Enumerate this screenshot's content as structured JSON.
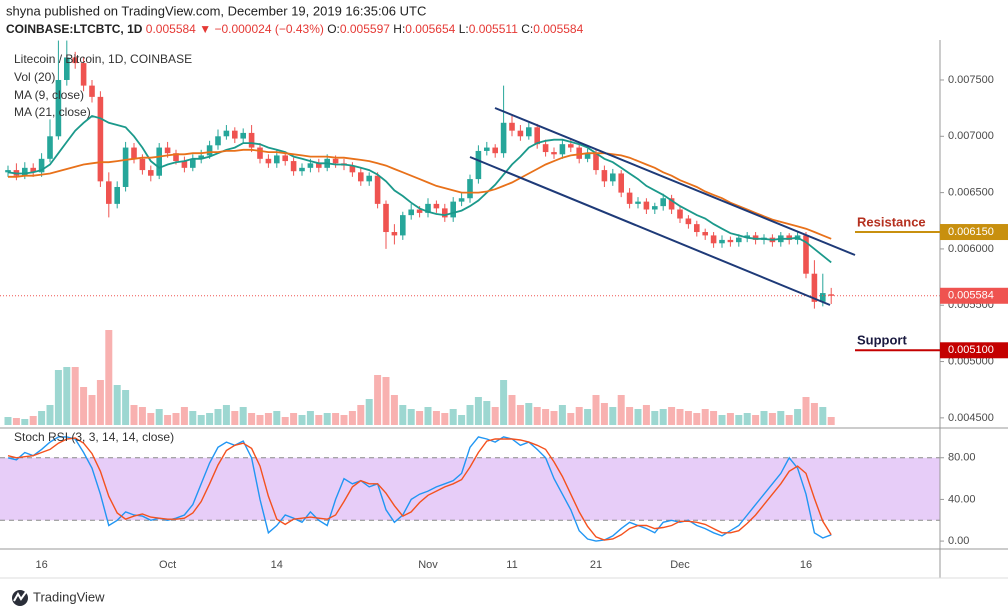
{
  "header": {
    "publisher": "shyna published on TradingView.com, December 19, 2019 16:35:06 UTC",
    "quote": {
      "symbol": "COINBASE:LTCBTC, 1D",
      "last": "0.005584",
      "arrow": "▼",
      "change": "−0.000024 (−0.43%)",
      "o_label": "O:",
      "o": "0.005597",
      "h_label": "H:",
      "h": "0.005654",
      "l_label": "L:",
      "l": "0.005511",
      "c_label": "C:",
      "c": "0.005584"
    }
  },
  "footer": {
    "brand": "TradingView"
  },
  "chart_data": [
    {
      "type": "candlestick",
      "title": "Litecoin / Bitcoin, 1D, COINBASE",
      "categories": [
        null,
        null,
        null,
        null,
        "16",
        null,
        null,
        null,
        null,
        null,
        null,
        null,
        null,
        null,
        null,
        null,
        null,
        null,
        null,
        "Oct",
        null,
        null,
        null,
        null,
        null,
        null,
        null,
        null,
        null,
        null,
        null,
        null,
        "14",
        null,
        null,
        null,
        null,
        null,
        null,
        null,
        null,
        null,
        null,
        null,
        null,
        null,
        null,
        null,
        null,
        null,
        "Nov",
        null,
        null,
        null,
        null,
        null,
        null,
        null,
        null,
        null,
        "11",
        null,
        null,
        null,
        null,
        null,
        null,
        null,
        null,
        null,
        "21",
        null,
        null,
        null,
        null,
        null,
        null,
        null,
        null,
        null,
        "Dec",
        null,
        null,
        null,
        null,
        null,
        null,
        null,
        null,
        null,
        null,
        null,
        null,
        null,
        null,
        "16",
        null,
        null,
        null
      ],
      "open": [
        0.00668,
        0.0067,
        0.00665,
        0.00672,
        0.00668,
        0.0068,
        0.007,
        0.0075,
        0.0077,
        0.00765,
        0.00745,
        0.00735,
        0.0066,
        0.0064,
        0.00655,
        0.0069,
        0.0068,
        0.0067,
        0.00665,
        0.0069,
        0.00685,
        0.00678,
        0.00672,
        0.0068,
        0.00683,
        0.00692,
        0.007,
        0.00705,
        0.00698,
        0.00703,
        0.0069,
        0.0068,
        0.00676,
        0.00683,
        0.00678,
        0.00669,
        0.00672,
        0.00676,
        0.00672,
        0.0068,
        0.00676,
        0.00674,
        0.00668,
        0.0066,
        0.00665,
        0.0064,
        0.00615,
        0.00612,
        0.0063,
        0.00635,
        0.00632,
        0.0064,
        0.00636,
        0.00628,
        0.00642,
        0.00645,
        0.00662,
        0.00687,
        0.0069,
        0.00685,
        0.00712,
        0.00705,
        0.007,
        0.00708,
        0.00693,
        0.00686,
        0.00684,
        0.00693,
        0.0069,
        0.0068,
        0.00685,
        0.0067,
        0.0066,
        0.00667,
        0.0065,
        0.0064,
        0.00642,
        0.00635,
        0.00638,
        0.00645,
        0.00635,
        0.00627,
        0.00622,
        0.00615,
        0.00612,
        0.00605,
        0.00608,
        0.00606,
        0.0061,
        0.00612,
        0.00608,
        0.0061,
        0.00606,
        0.00612,
        0.00608,
        0.00612,
        0.00578,
        0.00553,
        0.005597
      ],
      "high": [
        0.00674,
        0.00676,
        0.00677,
        0.00676,
        0.00685,
        0.00715,
        0.00785,
        0.00785,
        0.00775,
        0.0077,
        0.0075,
        0.0074,
        0.00668,
        0.0066,
        0.00695,
        0.00694,
        0.00684,
        0.00674,
        0.00694,
        0.00695,
        0.00688,
        0.00682,
        0.00684,
        0.00688,
        0.00696,
        0.00706,
        0.0071,
        0.00708,
        0.00707,
        0.0071,
        0.00694,
        0.00684,
        0.00688,
        0.00686,
        0.00681,
        0.00676,
        0.0068,
        0.0068,
        0.00684,
        0.00683,
        0.0068,
        0.00677,
        0.00672,
        0.00668,
        0.00668,
        0.00643,
        0.00622,
        0.00633,
        0.0064,
        0.00638,
        0.00645,
        0.00643,
        0.0064,
        0.00646,
        0.0065,
        0.00666,
        0.00692,
        0.00695,
        0.00693,
        0.00745,
        0.00718,
        0.0071,
        0.00712,
        0.00711,
        0.00697,
        0.0069,
        0.00697,
        0.00698,
        0.00693,
        0.00689,
        0.00688,
        0.00674,
        0.00671,
        0.0067,
        0.00654,
        0.00646,
        0.00645,
        0.00641,
        0.00649,
        0.00648,
        0.00638,
        0.0063,
        0.00625,
        0.00618,
        0.00615,
        0.00612,
        0.00611,
        0.00613,
        0.00615,
        0.00615,
        0.00613,
        0.00613,
        0.00615,
        0.00614,
        0.00615,
        0.00615,
        0.0059,
        0.00578,
        0.005654
      ],
      "low": [
        0.00664,
        0.00661,
        0.00662,
        0.00664,
        0.00664,
        0.00677,
        0.00697,
        0.00745,
        0.0076,
        0.0074,
        0.0073,
        0.00655,
        0.00628,
        0.00636,
        0.00651,
        0.00676,
        0.00666,
        0.0066,
        0.00662,
        0.00681,
        0.00675,
        0.00668,
        0.00669,
        0.00676,
        0.0068,
        0.00688,
        0.00697,
        0.00694,
        0.00694,
        0.00686,
        0.00676,
        0.00672,
        0.00672,
        0.00674,
        0.00665,
        0.00665,
        0.00668,
        0.00668,
        0.00669,
        0.00672,
        0.0067,
        0.00664,
        0.00656,
        0.00656,
        0.00636,
        0.006,
        0.00604,
        0.00608,
        0.00626,
        0.00628,
        0.00628,
        0.00632,
        0.00624,
        0.00624,
        0.00638,
        0.00641,
        0.00658,
        0.00683,
        0.00681,
        0.00681,
        0.007,
        0.00696,
        0.00697,
        0.00689,
        0.00682,
        0.0068,
        0.0068,
        0.00686,
        0.00676,
        0.00677,
        0.00666,
        0.00655,
        0.00656,
        0.00646,
        0.00636,
        0.00636,
        0.00631,
        0.00631,
        0.00634,
        0.00631,
        0.00623,
        0.00618,
        0.00611,
        0.00608,
        0.00601,
        0.00601,
        0.00602,
        0.00602,
        0.00606,
        0.00604,
        0.00604,
        0.00602,
        0.00602,
        0.00604,
        0.00604,
        0.00574,
        0.00547,
        0.00549,
        0.005511
      ],
      "close": [
        0.0067,
        0.00665,
        0.00672,
        0.00668,
        0.0068,
        0.007,
        0.0075,
        0.0077,
        0.00765,
        0.00745,
        0.00735,
        0.0066,
        0.0064,
        0.00655,
        0.0069,
        0.0068,
        0.0067,
        0.00665,
        0.0069,
        0.00685,
        0.00678,
        0.00672,
        0.0068,
        0.00683,
        0.00692,
        0.007,
        0.00705,
        0.00698,
        0.00703,
        0.0069,
        0.0068,
        0.00676,
        0.00683,
        0.00678,
        0.00669,
        0.00672,
        0.00676,
        0.00672,
        0.0068,
        0.00676,
        0.00674,
        0.00668,
        0.0066,
        0.00665,
        0.0064,
        0.00615,
        0.00612,
        0.0063,
        0.00635,
        0.00632,
        0.0064,
        0.00636,
        0.00628,
        0.00642,
        0.00645,
        0.00662,
        0.00687,
        0.0069,
        0.00685,
        0.00712,
        0.00705,
        0.007,
        0.00708,
        0.00693,
        0.00686,
        0.00684,
        0.00693,
        0.0069,
        0.0068,
        0.00685,
        0.0067,
        0.0066,
        0.00667,
        0.0065,
        0.0064,
        0.00642,
        0.00635,
        0.00638,
        0.00645,
        0.00635,
        0.00627,
        0.00622,
        0.00615,
        0.00612,
        0.00605,
        0.00608,
        0.00606,
        0.0061,
        0.00612,
        0.00608,
        0.0061,
        0.00606,
        0.00612,
        0.00608,
        0.00612,
        0.00578,
        0.00553,
        0.005608,
        0.005584
      ],
      "up_color": "#26a69a",
      "down_color": "#ef5350",
      "ylim": [
        0.00441,
        0.007855
      ],
      "yticks": [
        {
          "value": 0.0075,
          "label": "0.007500"
        },
        {
          "value": 0.007,
          "label": "0.007000"
        },
        {
          "value": 0.0065,
          "label": "0.006500"
        },
        {
          "value": 0.006,
          "label": "0.006000"
        },
        {
          "value": 0.0055,
          "label": "0.005500"
        },
        {
          "value": 0.005,
          "label": "0.005000"
        },
        {
          "value": 0.0045,
          "label": "0.004500"
        }
      ],
      "series": [
        {
          "name": "MA (9, close)",
          "color": "#1b998b",
          "values": [
            0.00668,
            0.00667,
            0.00667,
            0.00668,
            0.0067,
            0.00675,
            0.00685,
            0.00695,
            0.00705,
            0.00712,
            0.00718,
            0.00716,
            0.00712,
            0.0071,
            0.00708,
            0.007,
            0.0069,
            0.00678,
            0.00672,
            0.00675,
            0.00677,
            0.00678,
            0.0068,
            0.0068,
            0.00682,
            0.00685,
            0.00688,
            0.0069,
            0.00694,
            0.00694,
            0.00693,
            0.0069,
            0.00688,
            0.00686,
            0.00682,
            0.0068,
            0.00678,
            0.00676,
            0.00676,
            0.00675,
            0.00675,
            0.00674,
            0.00672,
            0.0067,
            0.00666,
            0.0066,
            0.00652,
            0.00647,
            0.00641,
            0.00636,
            0.00633,
            0.00631,
            0.0063,
            0.00632,
            0.00634,
            0.00638,
            0.00643,
            0.0065,
            0.00657,
            0.00666,
            0.00675,
            0.00682,
            0.0069,
            0.00694,
            0.00696,
            0.00697,
            0.00697,
            0.00695,
            0.00693,
            0.0069,
            0.00685,
            0.0068,
            0.00677,
            0.00672,
            0.00667,
            0.00662,
            0.00656,
            0.00652,
            0.00648,
            0.00643,
            0.00638,
            0.00634,
            0.0063,
            0.00627,
            0.00622,
            0.00618,
            0.00614,
            0.00612,
            0.0061,
            0.00609,
            0.00609,
            0.00608,
            0.00609,
            0.00609,
            0.0061,
            0.00606,
            0.006,
            0.00594,
            0.00588
          ]
        },
        {
          "name": "MA (21, close)",
          "color": "#e8711a",
          "values": [
            0.00664,
            0.00664,
            0.00665,
            0.00665,
            0.00666,
            0.00667,
            0.00669,
            0.00671,
            0.00673,
            0.00675,
            0.00676,
            0.00677,
            0.00677,
            0.00678,
            0.00679,
            0.0068,
            0.00681,
            0.00681,
            0.00682,
            0.00683,
            0.00684,
            0.00684,
            0.00685,
            0.00685,
            0.00686,
            0.00686,
            0.00687,
            0.00687,
            0.00688,
            0.00688,
            0.00687,
            0.00686,
            0.00686,
            0.00685,
            0.00684,
            0.00683,
            0.00682,
            0.00682,
            0.00682,
            0.00681,
            0.00681,
            0.0068,
            0.00679,
            0.00678,
            0.00676,
            0.00674,
            0.00671,
            0.00668,
            0.00665,
            0.00662,
            0.00659,
            0.00656,
            0.00654,
            0.00652,
            0.0065,
            0.0065,
            0.0065,
            0.00651,
            0.00653,
            0.00656,
            0.00659,
            0.00663,
            0.00667,
            0.00671,
            0.00675,
            0.00678,
            0.00681,
            0.00683,
            0.00684,
            0.00685,
            0.00685,
            0.00685,
            0.00684,
            0.00683,
            0.00681,
            0.00678,
            0.00675,
            0.00672,
            0.00668,
            0.00665,
            0.00661,
            0.00658,
            0.00655,
            0.00651,
            0.00648,
            0.00645,
            0.00641,
            0.00638,
            0.00635,
            0.00632,
            0.00629,
            0.00626,
            0.00624,
            0.00622,
            0.0062,
            0.00618,
            0.00615,
            0.00612,
            0.00609
          ]
        }
      ],
      "volume": {
        "name": "Vol (20)",
        "ylim": [
          0,
          100
        ],
        "values": [
          8,
          7,
          6,
          9,
          14,
          20,
          55,
          58,
          58,
          38,
          30,
          45,
          95,
          40,
          35,
          20,
          18,
          12,
          16,
          10,
          12,
          18,
          14,
          10,
          12,
          16,
          20,
          14,
          18,
          12,
          10,
          12,
          14,
          8,
          12,
          10,
          14,
          10,
          12,
          12,
          10,
          14,
          20,
          26,
          50,
          48,
          30,
          20,
          16,
          14,
          18,
          14,
          12,
          16,
          10,
          20,
          28,
          24,
          18,
          45,
          30,
          20,
          22,
          18,
          16,
          14,
          20,
          12,
          18,
          16,
          30,
          22,
          18,
          30,
          18,
          16,
          20,
          14,
          16,
          18,
          16,
          14,
          12,
          16,
          14,
          10,
          12,
          10,
          12,
          10,
          14,
          12,
          14,
          10,
          16,
          28,
          22,
          18,
          8
        ]
      },
      "last_price": {
        "value": 0.005584,
        "label": "0.005584",
        "color": "#ef5350"
      },
      "annotations": [
        {
          "text": "Resistance",
          "value": 0.00615,
          "label": "0.006150",
          "color": "#c8900f",
          "text_color": "#b5301f"
        },
        {
          "text": "Support",
          "value": 0.0051,
          "label": "0.005100",
          "color": "#c40000",
          "text_color": "#1a1a40"
        }
      ]
    },
    {
      "type": "line",
      "title": "Stoch RSI (3, 3, 14, 14, close)",
      "ylim": [
        -7.6,
        107.6
      ],
      "yticks": [
        {
          "value": 80,
          "label": "80.00"
        },
        {
          "value": 40,
          "label": "40.00"
        },
        {
          "value": 0,
          "label": "0.00"
        }
      ],
      "band": [
        20,
        80
      ],
      "band_color": "#e7cdf8",
      "series": [
        {
          "color": "#2196f3",
          "values": [
            80,
            78,
            85,
            82,
            88,
            95,
            100,
            100,
            98,
            85,
            70,
            45,
            15,
            20,
            28,
            25,
            24,
            20,
            22,
            20,
            22,
            25,
            35,
            55,
            75,
            90,
            95,
            92,
            96,
            80,
            40,
            8,
            15,
            25,
            22,
            18,
            28,
            20,
            15,
            40,
            60,
            55,
            58,
            52,
            55,
            30,
            18,
            25,
            40,
            45,
            48,
            52,
            55,
            58,
            65,
            90,
            100,
            98,
            95,
            100,
            98,
            92,
            95,
            88,
            80,
            60,
            45,
            30,
            10,
            2,
            0,
            1,
            5,
            12,
            18,
            15,
            12,
            8,
            18,
            20,
            18,
            20,
            15,
            12,
            8,
            5,
            10,
            15,
            25,
            35,
            45,
            55,
            65,
            80,
            70,
            45,
            8,
            3,
            6
          ]
        },
        {
          "color": "#f4511e",
          "values": [
            82,
            80,
            81,
            82,
            85,
            88,
            94,
            98,
            99,
            94,
            84,
            67,
            43,
            27,
            21,
            24,
            26,
            23,
            22,
            21,
            21,
            22,
            27,
            38,
            55,
            73,
            87,
            92,
            94,
            89,
            72,
            43,
            21,
            16,
            21,
            22,
            23,
            22,
            21,
            25,
            38,
            52,
            58,
            55,
            55,
            46,
            34,
            24,
            28,
            37,
            44,
            48,
            52,
            55,
            59,
            71,
            85,
            96,
            98,
            98,
            98,
            97,
            95,
            92,
            88,
            76,
            62,
            45,
            28,
            14,
            4,
            1,
            2,
            6,
            12,
            15,
            15,
            12,
            13,
            15,
            19,
            19,
            18,
            16,
            12,
            8,
            8,
            10,
            17,
            25,
            35,
            45,
            55,
            67,
            72,
            65,
            41,
            19,
            6
          ]
        }
      ]
    }
  ]
}
